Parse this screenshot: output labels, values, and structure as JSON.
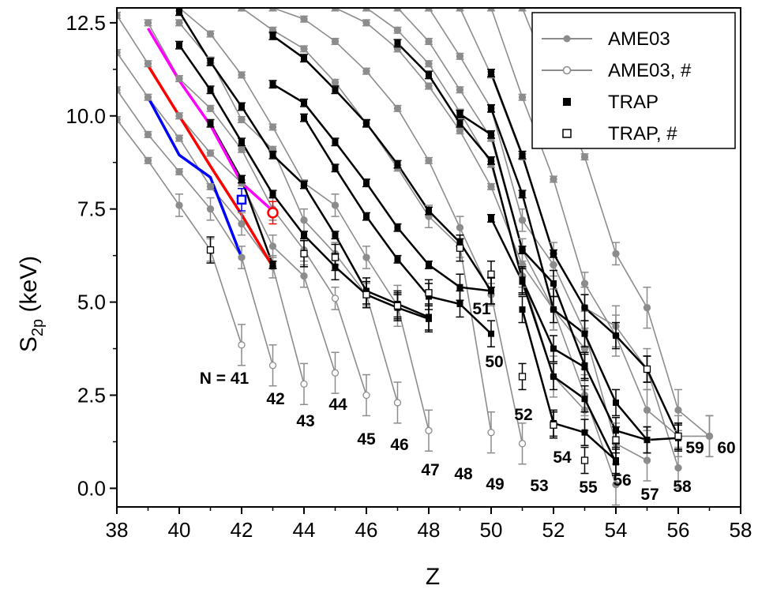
{
  "chart_data": {
    "type": "line",
    "xlabel": "Z",
    "ylabel": "S",
    "ylabel_sub": "2p",
    "ylabel_unit": " (keV)",
    "xlim": [
      38,
      58
    ],
    "ylim": [
      -0.5,
      12.9
    ],
    "x_ticks": [
      38,
      40,
      42,
      44,
      46,
      48,
      50,
      52,
      54,
      56,
      58
    ],
    "y_ticks": [
      0.0,
      2.5,
      5.0,
      7.5,
      10.0,
      12.5
    ],
    "y_tick_labels": [
      "0.0",
      "2.5",
      "5.0",
      "7.5",
      "10.0",
      "12.5"
    ],
    "legend": {
      "position": "top-right",
      "entries": [
        "AME03",
        "AME03, #",
        "TRAP",
        "TRAP, #"
      ]
    },
    "isotone_labels": [
      "N = 41",
      "42",
      "43",
      "44",
      "45",
      "46",
      "47",
      "48",
      "49",
      "50",
      "51",
      "52",
      "53",
      "54",
      "55",
      "56",
      "57",
      "58",
      "59",
      "60"
    ],
    "colors": {
      "ame03": "#8c8c8c",
      "trap": "#000000",
      "magenta": "#ff00ff",
      "red": "#ff0000",
      "blue": "#0000ff"
    },
    "series": [
      {
        "points": [
          [
            38,
            9.9
          ],
          [
            39,
            8.8
          ],
          [
            40,
            7.6
          ],
          [
            41,
            6.4
          ],
          [
            42,
            3.85
          ]
        ]
      },
      {
        "points": [
          [
            38,
            10.7
          ],
          [
            39,
            9.5
          ],
          [
            40,
            8.5
          ],
          [
            41,
            7.5
          ],
          [
            42,
            6.2
          ],
          [
            43,
            3.3
          ]
        ]
      },
      {
        "points": [
          [
            38,
            11.7
          ],
          [
            39,
            10.5
          ],
          [
            40,
            9.4
          ],
          [
            41,
            8.1
          ],
          [
            42,
            7.1
          ],
          [
            43,
            5.95
          ],
          [
            44,
            2.8
          ]
        ]
      },
      {
        "points": [
          [
            38,
            12.7
          ],
          [
            39,
            11.4
          ],
          [
            40,
            10.0
          ],
          [
            41,
            9.0
          ],
          [
            42,
            8.2
          ],
          [
            43,
            6.5
          ],
          [
            44,
            5.7
          ],
          [
            45,
            3.1
          ]
        ]
      },
      {
        "points": [
          [
            39,
            12.5
          ],
          [
            40,
            11.0
          ],
          [
            41,
            10.2
          ],
          [
            42,
            9.1
          ],
          [
            43,
            7.5
          ],
          [
            44,
            6.4
          ],
          [
            45,
            5.1
          ],
          [
            46,
            2.5
          ]
        ]
      },
      {
        "points": [
          [
            40,
            12.5
          ],
          [
            41,
            11.5
          ],
          [
            42,
            9.9
          ],
          [
            43,
            9.1
          ],
          [
            44,
            7.2
          ],
          [
            45,
            6.3
          ],
          [
            46,
            5.2
          ],
          [
            47,
            2.3
          ]
        ]
      },
      {
        "points": [
          [
            40,
            12.9
          ],
          [
            41,
            12.2
          ],
          [
            42,
            11.1
          ],
          [
            43,
            9.7
          ],
          [
            44,
            8.2
          ],
          [
            45,
            7.6
          ],
          [
            46,
            6.2
          ],
          [
            47,
            4.9
          ],
          [
            48,
            1.55
          ]
        ]
      },
      {
        "points": [
          [
            42,
            12.9
          ],
          [
            43,
            12.3
          ],
          [
            44,
            11.8
          ],
          [
            45,
            10.9
          ],
          [
            46,
            9.8
          ],
          [
            47,
            8.6
          ],
          [
            48,
            7.3
          ],
          [
            49,
            6.5
          ],
          [
            50,
            1.5
          ]
        ]
      },
      {
        "points": [
          [
            43,
            12.9
          ],
          [
            44,
            12.6
          ],
          [
            45,
            12.0
          ],
          [
            46,
            11.2
          ],
          [
            47,
            10.2
          ],
          [
            48,
            8.8
          ],
          [
            49,
            7.0
          ],
          [
            50,
            5.2
          ],
          [
            51,
            1.2
          ]
        ]
      },
      {
        "points": [
          [
            45,
            12.9
          ],
          [
            46,
            12.5
          ],
          [
            47,
            11.8
          ],
          [
            48,
            10.8
          ],
          [
            49,
            9.6
          ],
          [
            50,
            8.1
          ],
          [
            51,
            6.0
          ],
          [
            52,
            4.8
          ],
          [
            53,
            3.75
          ]
        ]
      },
      {
        "points": [
          [
            46,
            12.9
          ],
          [
            47,
            12.3
          ],
          [
            48,
            11.4
          ],
          [
            49,
            10.1
          ],
          [
            50,
            8.7
          ],
          [
            51,
            5.7
          ],
          [
            52,
            3.0
          ],
          [
            53,
            2.1
          ]
        ]
      },
      {
        "points": [
          [
            47,
            12.9
          ],
          [
            48,
            12.0
          ],
          [
            49,
            10.7
          ],
          [
            50,
            9.4
          ],
          [
            51,
            6.4
          ],
          [
            52,
            4.8
          ],
          [
            53,
            2.5
          ],
          [
            54,
            0.1
          ]
        ]
      },
      {
        "points": [
          [
            48,
            12.9
          ],
          [
            49,
            11.6
          ],
          [
            50,
            10.2
          ],
          [
            51,
            7.2
          ],
          [
            52,
            6.0
          ],
          [
            53,
            4.2
          ],
          [
            54,
            1.2
          ],
          [
            55,
            0.75
          ]
        ]
      },
      {
        "points": [
          [
            49,
            12.9
          ],
          [
            50,
            11.1
          ],
          [
            51,
            8.9
          ],
          [
            52,
            6.3
          ],
          [
            53,
            4.85
          ],
          [
            54,
            4.35
          ],
          [
            55,
            3.2
          ],
          [
            56,
            0.55
          ]
        ]
      },
      {
        "points": [
          [
            50,
            12.9
          ],
          [
            51,
            10.5
          ],
          [
            52,
            8.3
          ],
          [
            53,
            5.5
          ],
          [
            54,
            4.1
          ],
          [
            55,
            2.1
          ],
          [
            56,
            1.4
          ],
          [
            57,
            1.4
          ]
        ]
      },
      {
        "points": [
          [
            51,
            12.9
          ],
          [
            52,
            10.8
          ],
          [
            53,
            8.9
          ],
          [
            54,
            6.3
          ],
          [
            55,
            4.85
          ],
          [
            56,
            2.1
          ],
          [
            57,
            1.4
          ]
        ]
      }
    ],
    "trap_series": [
      {
        "points": [
          [
            40,
            12.8
          ],
          [
            41,
            11.45
          ],
          [
            42,
            10.25
          ],
          [
            43,
            8.95
          ],
          [
            44,
            8.15
          ],
          [
            45,
            6.8
          ],
          [
            46,
            5.3
          ],
          [
            47,
            4.95
          ],
          [
            48,
            4.6
          ]
        ]
      },
      {
        "points": [
          [
            40,
            11.9
          ],
          [
            41,
            10.7
          ],
          [
            42,
            9.3
          ],
          [
            43,
            7.9
          ],
          [
            44,
            6.8
          ],
          [
            45,
            5.95
          ],
          [
            46,
            5.2
          ],
          [
            47,
            4.85
          ],
          [
            48,
            4.55
          ]
        ]
      },
      {
        "points": [
          [
            41,
            9.8
          ],
          [
            42,
            8.3
          ],
          [
            43,
            6.0
          ]
        ]
      },
      {
        "points": [
          [
            43,
            10.85
          ],
          [
            44,
            10.35
          ],
          [
            45,
            9.3
          ],
          [
            46,
            8.2
          ],
          [
            47,
            7.0
          ],
          [
            48,
            6.0
          ],
          [
            49,
            5.4
          ],
          [
            50,
            5.3
          ]
        ]
      },
      {
        "points": [
          [
            44,
            9.95
          ],
          [
            45,
            8.6
          ],
          [
            46,
            7.3
          ],
          [
            47,
            6.15
          ],
          [
            48,
            5.15
          ],
          [
            49,
            4.95
          ],
          [
            50,
            4.15
          ]
        ]
      },
      {
        "points": [
          [
            43,
            12.15
          ],
          [
            44,
            11.55
          ],
          [
            45,
            10.7
          ],
          [
            46,
            9.8
          ],
          [
            47,
            8.7
          ],
          [
            48,
            7.45
          ],
          [
            49,
            6.6
          ],
          [
            50,
            5.3
          ]
        ]
      },
      {
        "points": [
          [
            47,
            11.95
          ],
          [
            48,
            11.1
          ],
          [
            49,
            9.8
          ],
          [
            50,
            8.8
          ],
          [
            51,
            5.6
          ],
          [
            52,
            3.75
          ],
          [
            53,
            3.25
          ]
        ]
      },
      {
        "points": [
          [
            49,
            10.05
          ],
          [
            50,
            9.5
          ],
          [
            51,
            6.4
          ],
          [
            52,
            5.5
          ],
          [
            53,
            3.3
          ],
          [
            54,
            1.55
          ],
          [
            55,
            1.3
          ]
        ]
      },
      {
        "points": [
          [
            50,
            11.15
          ],
          [
            51,
            8.95
          ],
          [
            52,
            6.3
          ],
          [
            53,
            4.85
          ],
          [
            54,
            4.1
          ],
          [
            55,
            3.2
          ],
          [
            56,
            1.4
          ]
        ]
      },
      {
        "points": [
          [
            50,
            10.2
          ],
          [
            51,
            7.9
          ],
          [
            52,
            4.8
          ],
          [
            53,
            4.15
          ],
          [
            54,
            2.3
          ],
          [
            55,
            1.3
          ],
          [
            56,
            1.35
          ]
        ]
      },
      {
        "points": [
          [
            50,
            7.25
          ],
          [
            51,
            5.55
          ],
          [
            52,
            3.0
          ],
          [
            53,
            2.4
          ],
          [
            54,
            0.7
          ]
        ]
      },
      {
        "points": [
          [
            51,
            4.8
          ],
          [
            52,
            1.75
          ],
          [
            53,
            1.5
          ],
          [
            54,
            0.75
          ]
        ]
      }
    ],
    "color_series": [
      {
        "color_key": "magenta",
        "points": [
          [
            39,
            12.35
          ],
          [
            40,
            10.95
          ],
          [
            41,
            9.75
          ],
          [
            42,
            8.2
          ],
          [
            43,
            7.45
          ]
        ]
      },
      {
        "color_key": "red",
        "points": [
          [
            39,
            11.35
          ],
          [
            40,
            10.0
          ],
          [
            41,
            8.65
          ],
          [
            42,
            7.35
          ],
          [
            43,
            5.95
          ]
        ]
      },
      {
        "color_key": "blue",
        "points": [
          [
            39,
            10.5
          ],
          [
            40,
            8.95
          ],
          [
            41,
            8.35
          ],
          [
            42,
            6.2
          ]
        ]
      }
    ],
    "trap_open_points": [
      [
        41,
        6.4
      ],
      [
        44,
        6.3
      ],
      [
        45,
        6.2
      ],
      [
        46,
        5.2
      ],
      [
        47,
        4.9
      ],
      [
        48,
        5.25
      ],
      [
        49,
        6.45
      ],
      [
        50,
        5.75
      ],
      [
        51,
        3.0
      ],
      [
        52,
        1.7
      ],
      [
        53,
        0.75
      ],
      [
        54,
        1.3
      ],
      [
        55,
        3.2
      ],
      [
        56,
        1.4
      ]
    ],
    "special_points": [
      {
        "color_key": "blue",
        "marker": "square-open",
        "x": 42,
        "y": 7.75
      },
      {
        "color_key": "red",
        "marker": "circle-open",
        "x": 43,
        "y": 7.4
      }
    ]
  }
}
